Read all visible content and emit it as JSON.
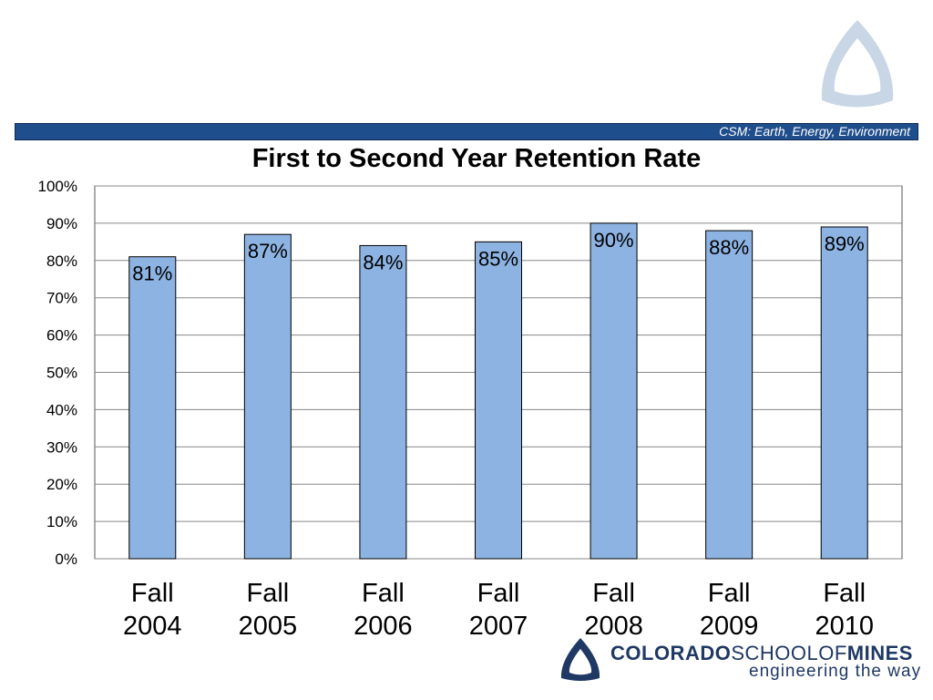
{
  "header": {
    "tagline": "CSM: Earth, Energy, Environment"
  },
  "footer": {
    "logo_name_part1": "COLORADO",
    "logo_name_part2": "SCHOOLOF",
    "logo_name_part3": "MINES",
    "logo_tagline": "engineering the way"
  },
  "colors": {
    "banner": "#1f4e8c",
    "bar_fill": "#8db3e2",
    "bar_stroke": "#000000",
    "grid": "#888888"
  },
  "chart_data": {
    "type": "bar",
    "title": "First to Second Year Retention Rate",
    "xlabel": "",
    "ylabel": "",
    "categories": [
      [
        "Fall",
        "2004"
      ],
      [
        "Fall",
        "2005"
      ],
      [
        "Fall",
        "2006"
      ],
      [
        "Fall",
        "2007"
      ],
      [
        "Fall",
        "2008"
      ],
      [
        "Fall",
        "2009"
      ],
      [
        "Fall",
        "2010"
      ]
    ],
    "values": [
      81,
      87,
      84,
      85,
      90,
      88,
      89
    ],
    "data_labels": [
      "81%",
      "87%",
      "84%",
      "85%",
      "90%",
      "88%",
      "89%"
    ],
    "ylim": [
      0,
      100
    ],
    "yticks": [
      0,
      10,
      20,
      30,
      40,
      50,
      60,
      70,
      80,
      90,
      100
    ],
    "ytick_labels": [
      "0%",
      "10%",
      "20%",
      "30%",
      "40%",
      "50%",
      "60%",
      "70%",
      "80%",
      "90%",
      "100%"
    ],
    "grid": true,
    "legend": "none"
  }
}
